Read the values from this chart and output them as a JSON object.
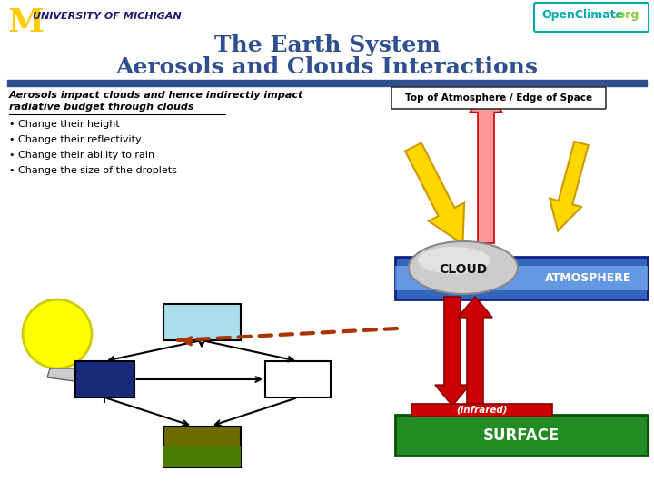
{
  "title_line1": "The Earth System",
  "title_line2": "Aerosols and Clouds Interactions",
  "title_color": "#2F4F8F",
  "title_fontsize": 18,
  "bg_color": "#FFFFFF",
  "header_bar_color": "#2F4F8F",
  "bullets": [
    "Change their height",
    "Change their reflectivity",
    "Change their ability to rain",
    "Change the size of the droplets"
  ],
  "toa_label": "Top of Atmosphere / Edge of Space",
  "cloud_label": "CLOUD",
  "atm_label": "ATMOSPHERE",
  "surface_label": "SURFACE",
  "infrared_label": "(infrared)",
  "sun_color": "#FFFF00",
  "surface_green": "#228B22",
  "dashed_arrow_color": "#AA3300"
}
